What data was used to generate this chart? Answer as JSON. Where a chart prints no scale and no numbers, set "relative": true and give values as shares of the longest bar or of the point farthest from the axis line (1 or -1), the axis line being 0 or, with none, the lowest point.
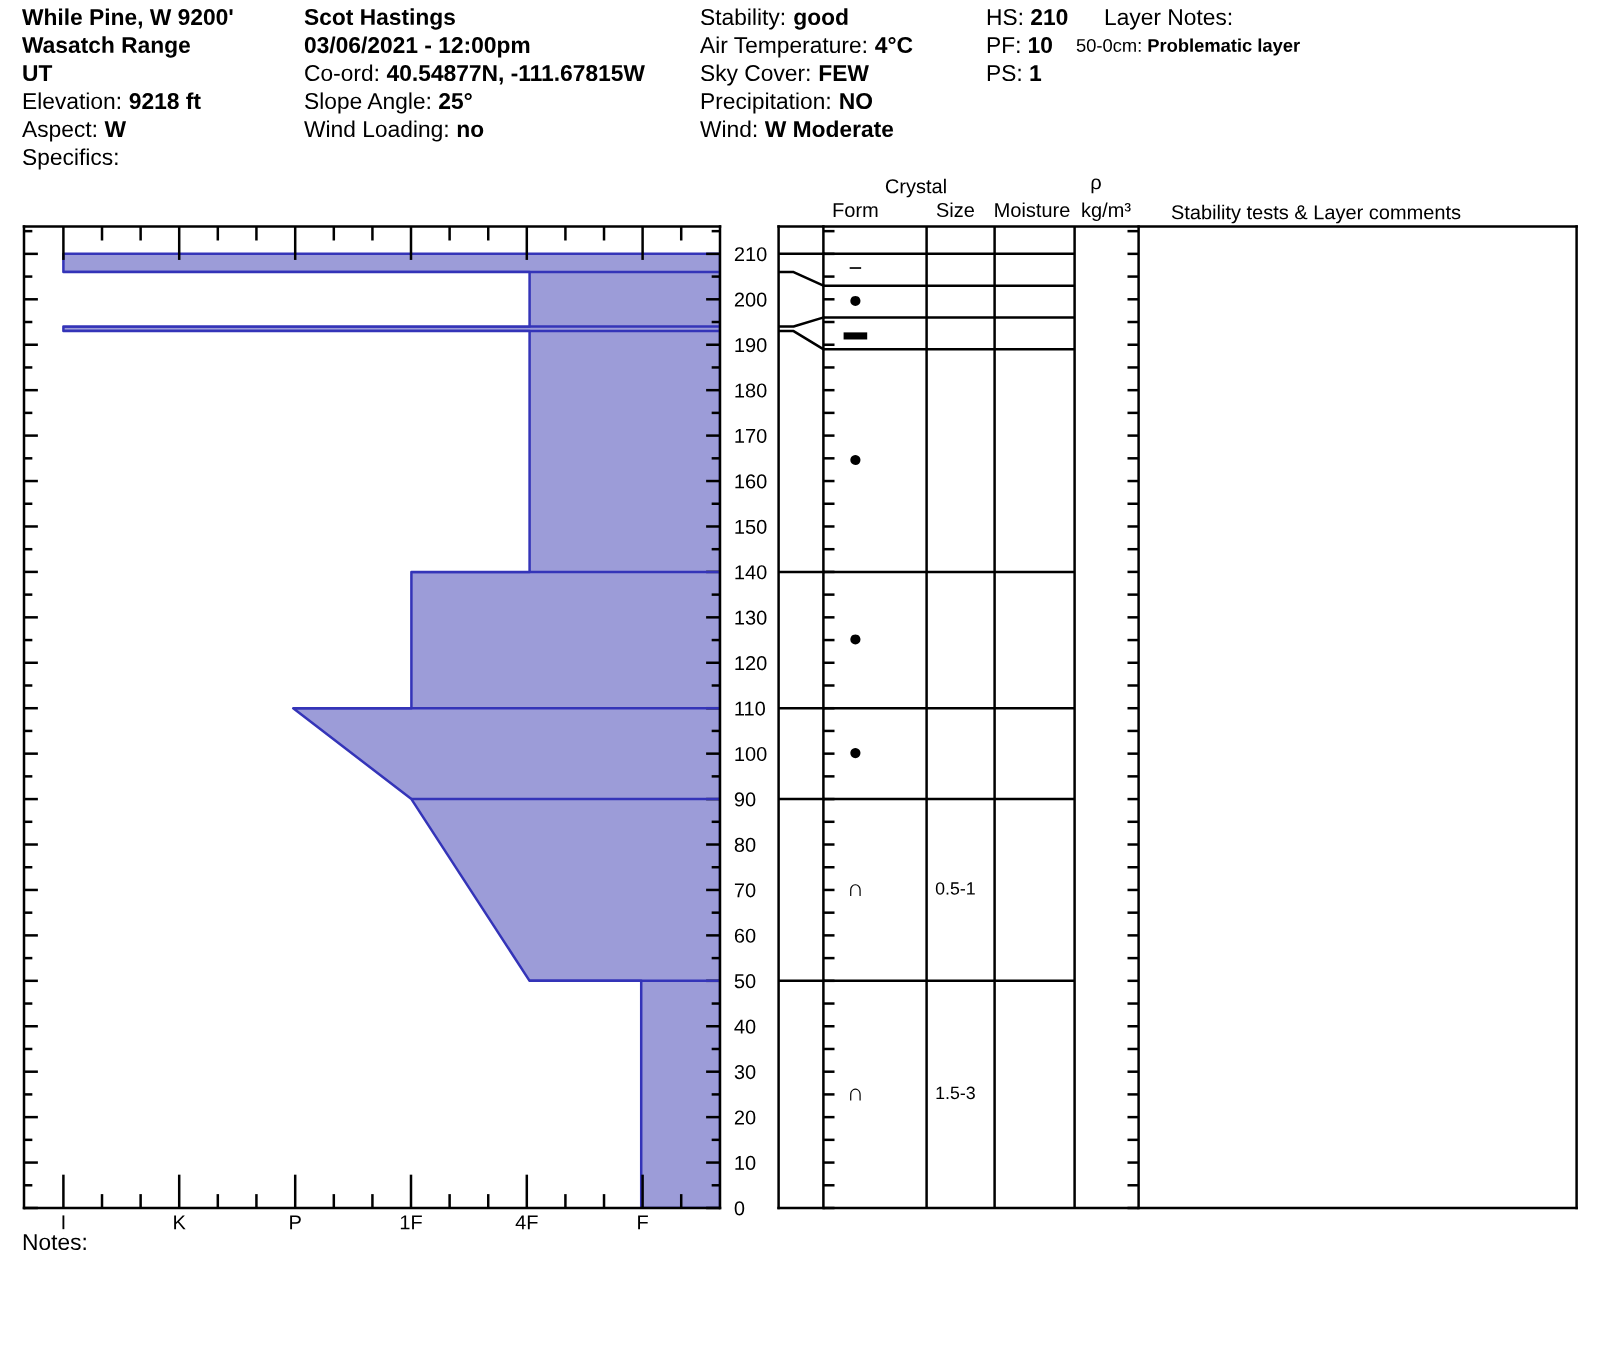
{
  "chart_data": [
    {
      "type": "area",
      "orientation": "horizontal",
      "relative": true,
      "series": [
        {
          "color": "#9c9cd8",
          "x": [
            0,
            50,
            50,
            90,
            110,
            110,
            140,
            140,
            193,
            193,
            194,
            194,
            206,
            206,
            210
          ],
          "values": [
            -0.12,
            -0.12,
            -0.29,
            -0.47,
            -0.65,
            -0.47,
            -0.47,
            -0.29,
            -0.29,
            -1,
            -1,
            -0.29,
            -0.29,
            -1,
            -1
          ]
        }
      ],
      "ref_lines": [
        {
          "axis": "y",
          "value": 50,
          "color": "#3434b8"
        },
        {
          "axis": "y",
          "value": 90,
          "color": "#3434b8"
        },
        {
          "axis": "y",
          "value": 110,
          "color": "#3434b8"
        },
        {
          "axis": "y",
          "value": 140,
          "color": "#3434b8"
        },
        {
          "axis": "y",
          "value": 193,
          "color": "#3434b8"
        },
        {
          "axis": "y",
          "value": 194,
          "color": "#3434b8"
        },
        {
          "axis": "y",
          "value": 206,
          "color": "#3434b8"
        }
      ],
      "ylim": [
        0,
        216
      ],
      "yticks": [
        0,
        {
          "value": 5,
          "label": null
        },
        10,
        {
          "value": 15,
          "label": null
        },
        20,
        {
          "value": 25,
          "label": null
        },
        30,
        {
          "value": 35,
          "label": null
        },
        40,
        {
          "value": 45,
          "label": null
        },
        50,
        {
          "value": 55,
          "label": null
        },
        60,
        {
          "value": 65,
          "label": null
        },
        70,
        {
          "value": 75,
          "label": null
        },
        80,
        {
          "value": 85,
          "label": null
        },
        90,
        {
          "value": 95,
          "label": null
        },
        100,
        {
          "value": 105,
          "label": null
        },
        110,
        {
          "value": 115,
          "label": null
        },
        120,
        {
          "value": 125,
          "label": null
        },
        130,
        {
          "value": 135,
          "label": null
        },
        140,
        {
          "value": 145,
          "label": null
        },
        150,
        {
          "value": 155,
          "label": null
        },
        160,
        {
          "value": 165,
          "label": null
        },
        170,
        {
          "value": 175,
          "label": null
        },
        180,
        {
          "value": 185,
          "label": null
        },
        190,
        {
          "value": 195,
          "label": null
        },
        200,
        {
          "value": 205,
          "label": null
        },
        210,
        {
          "value": 215,
          "label": null
        }
      ],
      "tick_labels": "y",
      "annotations": [
        "While Pine, W 9200'",
        "Wasatch Range",
        "UT",
        "Elevation: 9218 ft",
        "Aspect: W",
        "Specifics:",
        "Scot Hastings",
        "03/06/2021 - 12:00pm",
        "Co-ord: 40.54877N, -111.67815W",
        "Slope Angle: 25°",
        "Wind Loading: no",
        "Stability: good",
        "Air Temperature: 4°C",
        "Sky Cover: FEW",
        "Precipitation: NO",
        "Wind: W Moderate",
        "HS: 210",
        "PF: 10",
        "PS: 1",
        "Layer Notes:",
        "50-0cm: Problematic layer",
        "I",
        "K",
        "P",
        "1F",
        "4F",
        "F",
        "Notes:"
      ]
    },
    {
      "type": "line",
      "categories": [
        "Form",
        "Size",
        "Moisture",
        "kg/m³"
      ],
      "ylim": [
        0,
        216
      ],
      "yticks": [
        {
          "value": 0,
          "label": null
        },
        {
          "value": 5,
          "label": null
        },
        {
          "value": 10,
          "label": null
        },
        {
          "value": 15,
          "label": null
        },
        {
          "value": 20,
          "label": null
        },
        {
          "value": 25,
          "label": null
        },
        {
          "value": 30,
          "label": null
        },
        {
          "value": 35,
          "label": null
        },
        {
          "value": 40,
          "label": null
        },
        {
          "value": 45,
          "label": null
        },
        {
          "value": 50,
          "label": null
        },
        {
          "value": 55,
          "label": null
        },
        {
          "value": 60,
          "label": null
        },
        {
          "value": 65,
          "label": null
        },
        {
          "value": 70,
          "label": null
        },
        {
          "value": 75,
          "label": null
        },
        {
          "value": 80,
          "label": null
        },
        {
          "value": 85,
          "label": null
        },
        {
          "value": 90,
          "label": null
        },
        {
          "value": 95,
          "label": null
        },
        {
          "value": 100,
          "label": null
        },
        {
          "value": 105,
          "label": null
        },
        {
          "value": 110,
          "label": null
        },
        {
          "value": 115,
          "label": null
        },
        {
          "value": 120,
          "label": null
        },
        {
          "value": 125,
          "label": null
        },
        {
          "value": 130,
          "label": null
        },
        {
          "value": 135,
          "label": null
        },
        {
          "value": 140,
          "label": null
        },
        {
          "value": 145,
          "label": null
        },
        {
          "value": 150,
          "label": null
        },
        {
          "value": 155,
          "label": null
        },
        {
          "value": 160,
          "label": null
        },
        {
          "value": 165,
          "label": null
        },
        {
          "value": 170,
          "label": null
        },
        {
          "value": 175,
          "label": null
        },
        {
          "value": 180,
          "label": null
        },
        {
          "value": 185,
          "label": null
        },
        {
          "value": 190,
          "label": null
        },
        {
          "value": 195,
          "label": null
        },
        {
          "value": 200,
          "label": null
        },
        {
          "value": 205,
          "label": null
        },
        {
          "value": 210,
          "label": null
        },
        {
          "value": 215,
          "label": null
        }
      ],
      "ref_lines": [
        {
          "axis": "y",
          "value": 210
        },
        {
          "axis": "y",
          "value": 203
        },
        {
          "axis": "y",
          "value": 196
        },
        {
          "axis": "y",
          "value": 189
        },
        {
          "axis": "y",
          "value": 140
        },
        {
          "axis": "y",
          "value": 110
        },
        {
          "axis": "y",
          "value": 90
        },
        {
          "axis": "y",
          "value": 50
        }
      ],
      "tick_labels": "x",
      "annotations": [
        "Crystal",
        "ρ",
        "Stability tests & Layer comments",
        "−",
        "●",
        "▬",
        "●",
        "●",
        "●",
        "∩",
        "0.5-1",
        "∩",
        "1.5-3"
      ]
    }
  ]
}
